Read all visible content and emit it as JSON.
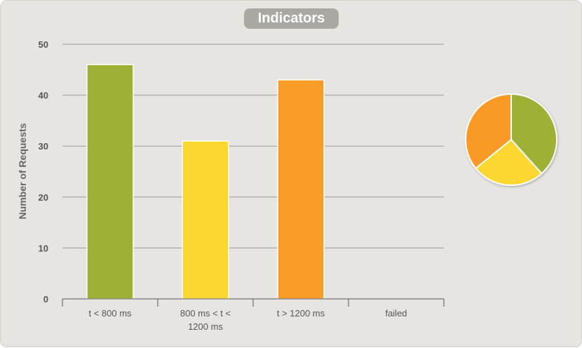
{
  "chart_data": {
    "type": "bar",
    "title": "Indicators",
    "ylabel": "Number of Requests",
    "xlabel": "",
    "ylim": [
      0,
      50
    ],
    "yticks": [
      0,
      10,
      20,
      30,
      40,
      50
    ],
    "grid": true,
    "categories": [
      [
        "t < 800 ms"
      ],
      [
        "800 ms < t <",
        "1200 ms"
      ],
      [
        "t > 1200 ms"
      ],
      [
        "failed"
      ]
    ],
    "values": [
      46,
      31,
      43,
      0
    ],
    "colors": [
      "#a0b036",
      "#fcd730",
      "#fa9a27",
      "#f15b4f"
    ],
    "inset_pie": {
      "type": "pie",
      "values": [
        46,
        31,
        43,
        0
      ],
      "colors": [
        "#a0b036",
        "#fcd730",
        "#fa9a27",
        "#f15b4f"
      ]
    }
  }
}
